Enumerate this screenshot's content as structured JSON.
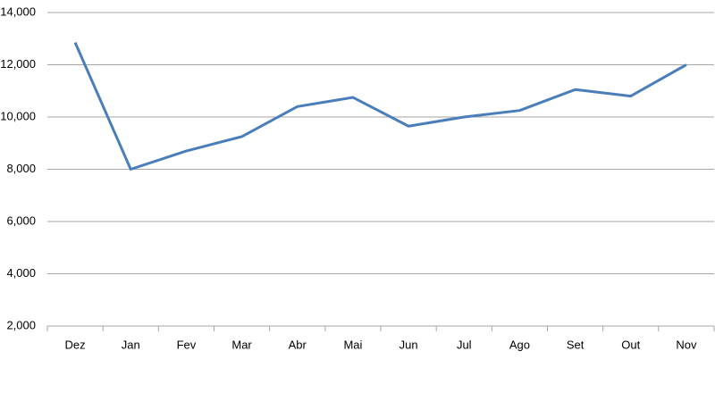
{
  "chart_data": {
    "type": "line",
    "categories": [
      "Dez",
      "Jan",
      "Fev",
      "Mar",
      "Abr",
      "Mai",
      "Jun",
      "Jul",
      "Ago",
      "Set",
      "Out",
      "Nov"
    ],
    "values": [
      12850,
      8000,
      8700,
      9250,
      10400,
      10750,
      9650,
      10000,
      10250,
      11050,
      10800,
      12000
    ],
    "color": "#4a7ebb",
    "ylim": [
      2000,
      14000
    ],
    "yticks": [
      {
        "value": 2000,
        "label": "2,000"
      },
      {
        "value": 4000,
        "label": "4,000"
      },
      {
        "value": 6000,
        "label": "6,000"
      },
      {
        "value": 8000,
        "label": "8,000"
      },
      {
        "value": 10000,
        "label": "10,000"
      },
      {
        "value": 12000,
        "label": "12,000"
      },
      {
        "value": 14000,
        "label": "14,000"
      }
    ],
    "grid": true
  }
}
